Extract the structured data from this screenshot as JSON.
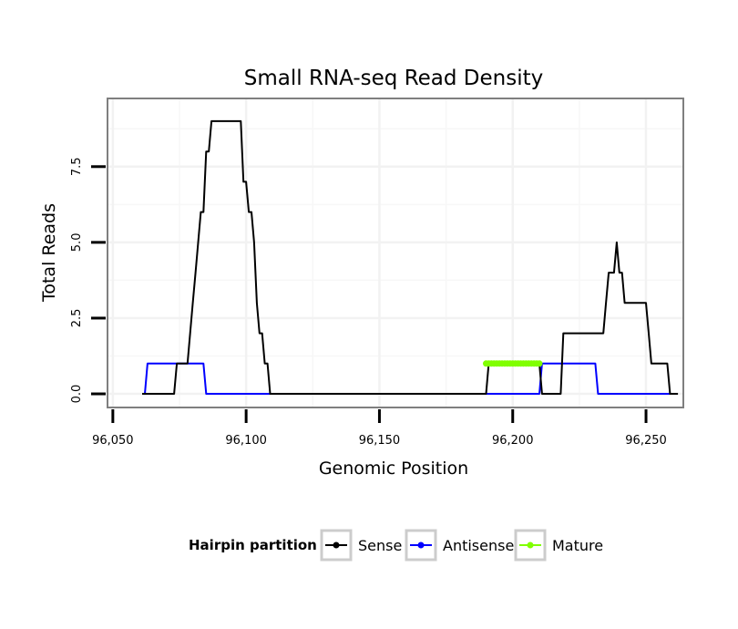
{
  "chart_data": {
    "type": "line",
    "title": "Small RNA-seq Read Density",
    "xlabel": "Genomic Position",
    "ylabel": "Total Reads",
    "xlim": [
      96048,
      96264
    ],
    "ylim": [
      -0.45,
      9.75
    ],
    "x_ticks": [
      96050,
      96100,
      96150,
      96200,
      96250
    ],
    "x_tick_labels": [
      "96,050",
      "96,100",
      "96,150",
      "96,200",
      "96,250"
    ],
    "y_ticks": [
      0,
      2.5,
      5,
      7.5
    ],
    "y_tick_labels": [
      "0.0",
      "2.5",
      "5.0",
      "7.5"
    ],
    "grid": true,
    "legend_position": "bottom",
    "legend_title": "Hairpin partition",
    "series": [
      {
        "name": "Sense",
        "color": "#000000",
        "marker": false,
        "x": [
          96061,
          96073,
          96074,
          96076,
          96077,
          96078,
          96079,
          96080,
          96081,
          96082,
          96083,
          96084,
          96085,
          96086,
          96087,
          96088,
          96089,
          96098,
          96099,
          96100,
          96101,
          96102,
          96103,
          96104,
          96105,
          96106,
          96107,
          96108,
          96109,
          96110,
          96111,
          96112,
          96190,
          96191,
          96210,
          96211,
          96218,
          96219,
          96220,
          96234,
          96235,
          96236,
          96237,
          96238,
          96239,
          96240,
          96241,
          96242,
          96243,
          96249,
          96250,
          96251,
          96252,
          96258,
          96259,
          96260,
          96262
        ],
        "y": [
          0,
          0,
          1,
          1,
          1,
          1,
          2,
          3,
          4,
          5,
          6,
          6,
          8,
          8,
          9,
          9,
          9,
          9,
          7,
          7,
          6,
          6,
          5,
          3,
          2,
          2,
          1,
          1,
          0,
          0,
          0,
          0,
          0,
          1,
          1,
          0,
          0,
          2,
          2,
          2,
          3,
          4,
          4,
          4,
          5,
          4,
          4,
          3,
          3,
          3,
          3,
          2,
          1,
          1,
          0,
          0,
          0
        ]
      },
      {
        "name": "Antisense",
        "color": "#0000ff",
        "marker": false,
        "x": [
          96061,
          96062,
          96063,
          96084,
          96085,
          96086,
          96210,
          96211,
          96231,
          96232,
          96233,
          96260
        ],
        "y": [
          0,
          0,
          1,
          1,
          0,
          0,
          0,
          1,
          1,
          0,
          0,
          0
        ]
      },
      {
        "name": "Mature",
        "color": "#80ff00",
        "marker": true,
        "x": [
          96190,
          96191,
          96192,
          96193,
          96194,
          96195,
          96196,
          96197,
          96198,
          96199,
          96200,
          96201,
          96202,
          96203,
          96204,
          96205,
          96206,
          96207,
          96208,
          96209,
          96210
        ],
        "y": [
          1,
          1,
          1,
          1,
          1,
          1,
          1,
          1,
          1,
          1,
          1,
          1,
          1,
          1,
          1,
          1,
          1,
          1,
          1,
          1,
          1
        ]
      }
    ]
  }
}
